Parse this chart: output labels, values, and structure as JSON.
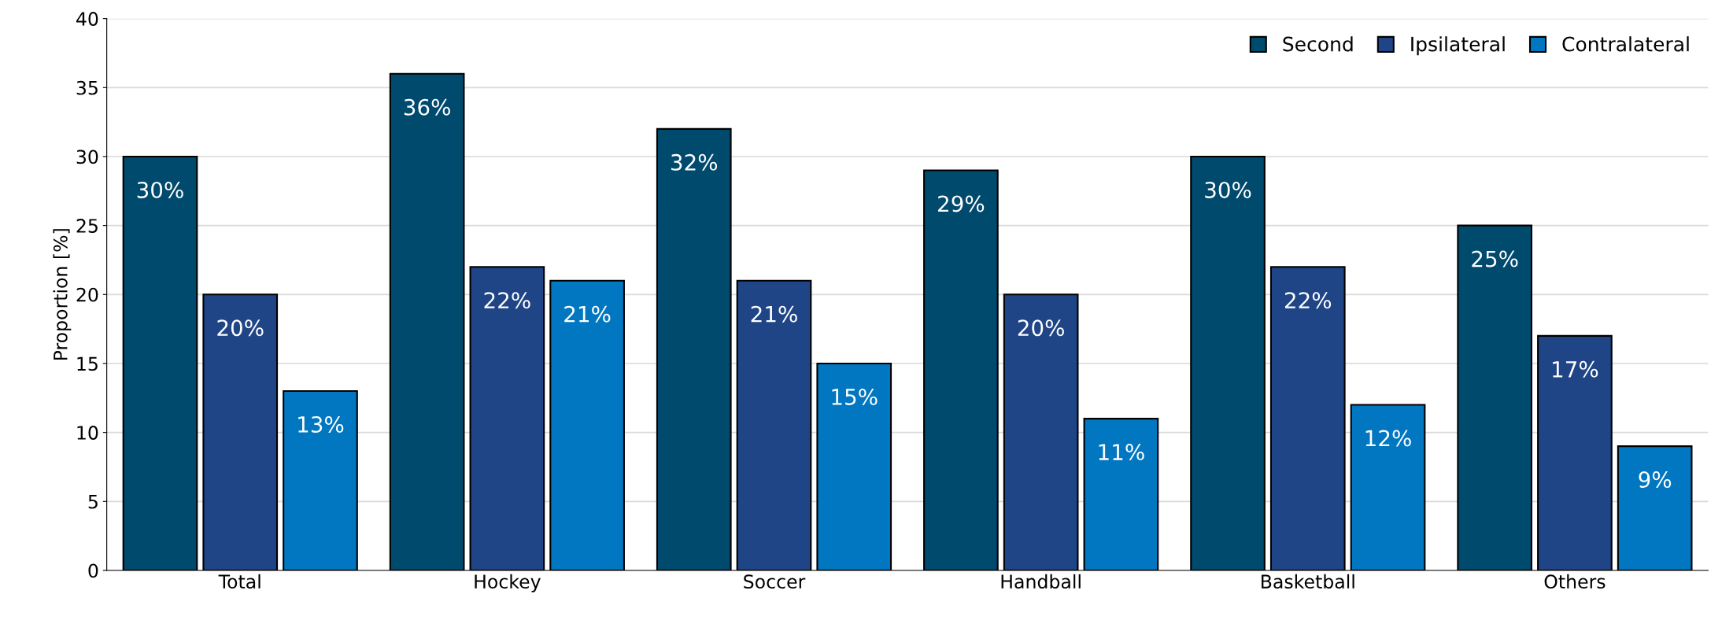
{
  "chart_data": {
    "type": "bar",
    "ylabel": "Proportion [%]",
    "categories": [
      "Total",
      "Hockey",
      "Soccer",
      "Handball",
      "Basketball",
      "Others"
    ],
    "series": [
      {
        "name": "Second",
        "color": "#004a6e",
        "values": [
          30,
          36,
          32,
          29,
          30,
          25
        ],
        "value_labels": [
          "30%",
          "36%",
          "32%",
          "29%",
          "30%",
          "25%"
        ]
      },
      {
        "name": "Ipsilateral",
        "color": "#1f4587",
        "values": [
          20,
          22,
          21,
          20,
          22,
          17
        ],
        "value_labels": [
          "20%",
          "22%",
          "21%",
          "20%",
          "22%",
          "17%"
        ]
      },
      {
        "name": "Contralateral",
        "color": "#0077c0",
        "values": [
          13,
          21,
          15,
          11,
          12,
          9
        ],
        "value_labels": [
          "13%",
          "21%",
          "15%",
          "11%",
          "12%",
          "9%"
        ]
      }
    ],
    "ylim": [
      0,
      40
    ],
    "yticks": [
      0,
      5,
      10,
      15,
      20,
      25,
      30,
      35,
      40
    ],
    "grid": "y",
    "legend": "top right"
  }
}
